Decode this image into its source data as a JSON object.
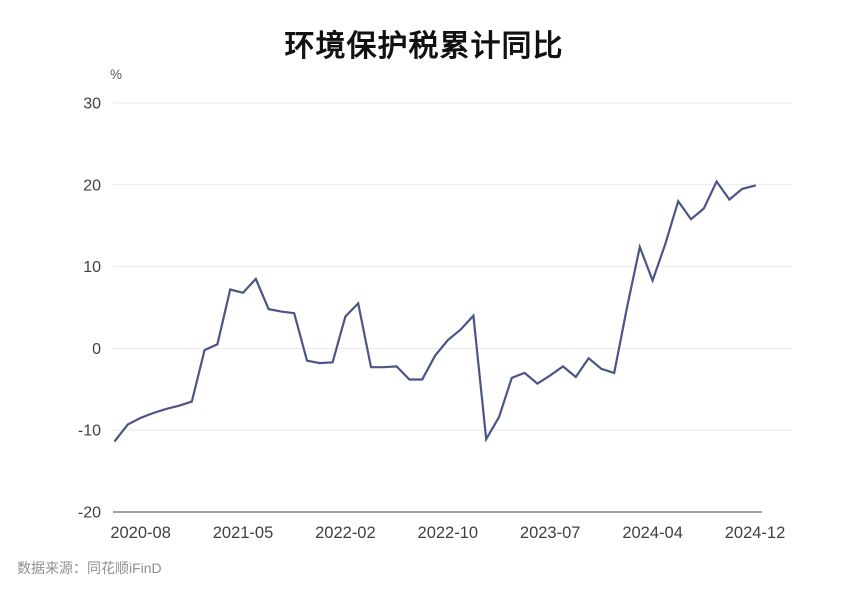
{
  "title": "环境保护税累计同比",
  "source": "数据来源：同花顺iFinD",
  "chart_data": {
    "type": "line",
    "title": "环境保护税累计同比",
    "unit": "%",
    "legend": "none",
    "grid": true,
    "ylim": [
      -20,
      30
    ],
    "y_ticks": [
      30,
      20,
      10,
      0,
      -10,
      -20
    ],
    "x_tick_labels": [
      "2020-08",
      "2021-05",
      "2022-02",
      "2022-10",
      "2023-07",
      "2024-04",
      "2024-12"
    ],
    "x_tick_indices": [
      2,
      10,
      18,
      26,
      34,
      42,
      50
    ],
    "categories": [
      "2020-06",
      "2020-07",
      "2020-08",
      "2020-09",
      "2020-10",
      "2020-11",
      "2020-12",
      "2021-02",
      "2021-03",
      "2021-04",
      "2021-05",
      "2021-06",
      "2021-07",
      "2021-08",
      "2021-09",
      "2021-10",
      "2021-11",
      "2021-12",
      "2022-02",
      "2022-03",
      "2022-04",
      "2022-05",
      "2022-06",
      "2022-07",
      "2022-08",
      "2022-09",
      "2022-10",
      "2022-11",
      "2022-12",
      "2023-02",
      "2023-03",
      "2023-04",
      "2023-05",
      "2023-06",
      "2023-07",
      "2023-08",
      "2023-09",
      "2023-10",
      "2023-11",
      "2023-12",
      "2024-02",
      "2024-03",
      "2024-04",
      "2024-05",
      "2024-06",
      "2024-07",
      "2024-08",
      "2024-09",
      "2024-10",
      "2024-11",
      "2024-12"
    ],
    "values": [
      -11.3,
      -9.3,
      -8.5,
      -7.9,
      -7.4,
      -7.0,
      -6.5,
      -0.2,
      0.5,
      7.2,
      6.8,
      8.5,
      4.8,
      4.5,
      4.3,
      -1.5,
      -1.8,
      -1.7,
      3.9,
      5.5,
      -2.3,
      -2.3,
      -2.2,
      -3.8,
      -3.8,
      -0.9,
      1.0,
      2.3,
      4.0,
      -11.1,
      -8.4,
      -3.6,
      -3.0,
      -4.3,
      -3.3,
      -2.2,
      -3.5,
      -1.2,
      -2.5,
      -3.0,
      5.0,
      12.4,
      8.3,
      12.8,
      18.0,
      15.8,
      17.1,
      20.4,
      18.2,
      19.5,
      19.9
    ],
    "colors": {
      "line": "#4c5488",
      "grid": "#e9e9ec",
      "axis_line": "#6e6e6e",
      "tick_label": "#404040",
      "unit_label": "#595959",
      "title": "#111111",
      "source": "#8f8f8f",
      "background": "#ffffff"
    }
  }
}
